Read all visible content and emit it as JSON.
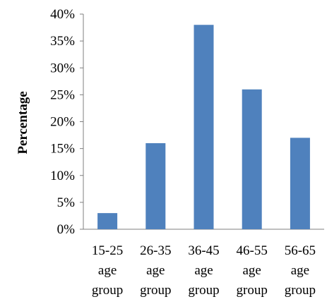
{
  "chart_data": {
    "type": "bar",
    "categories": [
      [
        "15-25",
        "age",
        "group"
      ],
      [
        "26-35",
        "age",
        "group"
      ],
      [
        "36-45",
        "age",
        "group"
      ],
      [
        "46-55",
        "age",
        "group"
      ],
      [
        "56-65",
        "age",
        "group"
      ]
    ],
    "values": [
      3,
      16,
      38,
      26,
      17
    ],
    "title": "",
    "xlabel": "",
    "ylabel": "Percentage",
    "ylim": [
      0,
      40
    ],
    "yticks": [
      "0%",
      "5%",
      "10%",
      "15%",
      "20%",
      "25%",
      "30%",
      "35%",
      "40%"
    ],
    "grid": false,
    "legend": "none",
    "bar_color": "#4f81bd"
  }
}
